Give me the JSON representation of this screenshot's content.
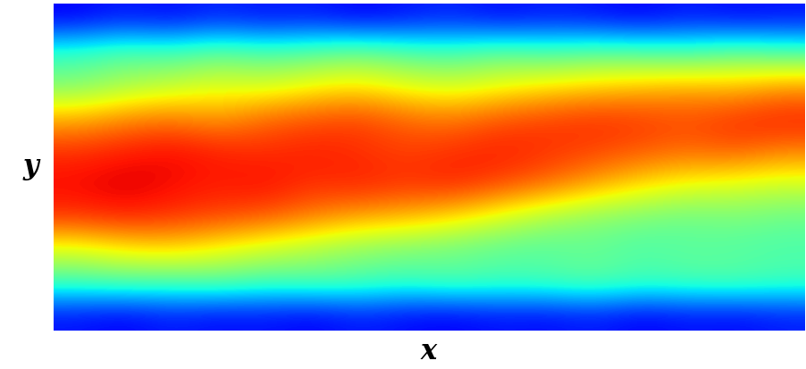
{
  "chart_data": {
    "type": "heatmap",
    "x_label": "x",
    "y_label": "y",
    "tick_labels": false,
    "cells": [
      [
        0.12,
        0.15,
        0.13,
        0.16,
        0.14,
        0.15,
        0.12,
        0.14,
        0.16,
        0.13,
        0.15,
        0.14,
        0.12,
        0.15,
        0.13,
        0.14
      ],
      [
        0.42,
        0.46,
        0.44,
        0.48,
        0.45,
        0.47,
        0.5,
        0.46,
        0.44,
        0.48,
        0.45,
        0.47,
        0.46,
        0.44,
        0.48,
        0.45
      ],
      [
        0.5,
        0.55,
        0.58,
        0.62,
        0.6,
        0.64,
        0.66,
        0.62,
        0.6,
        0.63,
        0.66,
        0.68,
        0.7,
        0.72,
        0.7,
        0.74
      ],
      [
        0.72,
        0.76,
        0.78,
        0.74,
        0.8,
        0.82,
        0.84,
        0.8,
        0.78,
        0.82,
        0.84,
        0.86,
        0.85,
        0.83,
        0.86,
        0.88
      ],
      [
        0.86,
        0.88,
        0.9,
        0.88,
        0.86,
        0.88,
        0.86,
        0.84,
        0.86,
        0.88,
        0.86,
        0.84,
        0.82,
        0.8,
        0.82,
        0.78
      ],
      [
        0.9,
        0.92,
        0.9,
        0.88,
        0.9,
        0.86,
        0.88,
        0.86,
        0.88,
        0.84,
        0.8,
        0.74,
        0.68,
        0.64,
        0.62,
        0.6
      ],
      [
        0.86,
        0.88,
        0.86,
        0.84,
        0.82,
        0.78,
        0.74,
        0.72,
        0.68,
        0.62,
        0.56,
        0.52,
        0.5,
        0.48,
        0.5,
        0.48
      ],
      [
        0.62,
        0.66,
        0.68,
        0.64,
        0.6,
        0.56,
        0.52,
        0.5,
        0.48,
        0.46,
        0.45,
        0.47,
        0.44,
        0.46,
        0.45,
        0.44
      ],
      [
        0.44,
        0.46,
        0.45,
        0.47,
        0.44,
        0.46,
        0.45,
        0.43,
        0.46,
        0.44,
        0.45,
        0.47,
        0.44,
        0.45,
        0.46,
        0.44
      ],
      [
        0.14,
        0.12,
        0.15,
        0.13,
        0.14,
        0.12,
        0.15,
        0.13,
        0.12,
        0.14,
        0.13,
        0.15,
        0.12,
        0.14,
        0.13,
        0.15
      ]
    ]
  }
}
